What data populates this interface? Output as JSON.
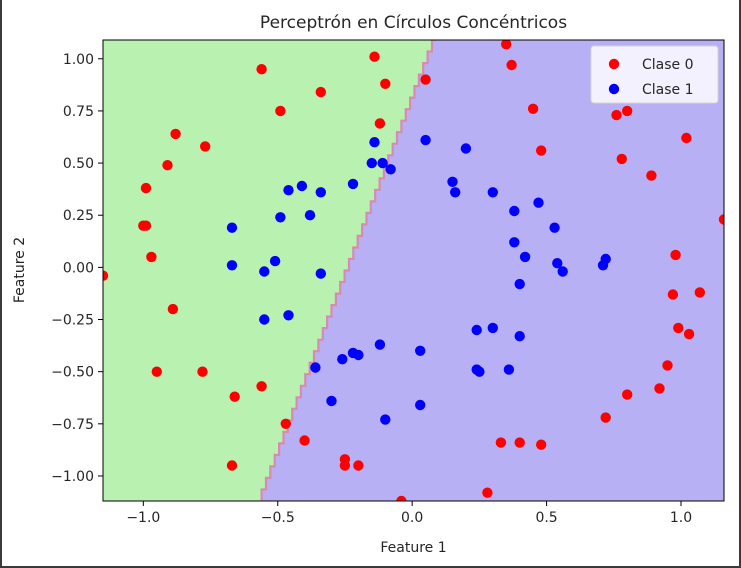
{
  "chart_data": {
    "type": "scatter",
    "title": "Perceptrón en Círculos Concéntricos",
    "xlabel": "Feature 1",
    "ylabel": "Feature 2",
    "xlim": [
      -1.15,
      1.16
    ],
    "ylim": [
      -1.12,
      1.09
    ],
    "xticks": [
      -1.0,
      -0.5,
      0.0,
      0.5,
      1.0
    ],
    "xtick_labels": [
      "−1.0",
      "−0.5",
      "0.0",
      "0.5",
      "1.0"
    ],
    "yticks": [
      1.0,
      0.75,
      0.5,
      0.25,
      0.0,
      -0.25,
      -0.5,
      -0.75,
      -1.0
    ],
    "ytick_labels": [
      "1.00",
      "0.75",
      "0.50",
      "0.25",
      "0.00",
      "−0.25",
      "−0.50",
      "−0.75",
      "−1.00"
    ],
    "grid": false,
    "legend_position": "top-right",
    "decision_regions": {
      "left_class": "Clase 0",
      "left_color": "#b9f1b0",
      "right_class": "Clase 1",
      "right_color": "#b8b0f4",
      "boundary_color": "#d98ab0",
      "boundary": [
        [
          -0.56,
          -1.12
        ],
        [
          0.09,
          1.09
        ]
      ]
    },
    "series": [
      {
        "name": "Clase 0",
        "color": "#ff0000",
        "points": [
          [
            -0.56,
            0.95
          ],
          [
            -0.14,
            1.01
          ],
          [
            -0.49,
            0.75
          ],
          [
            -0.34,
            0.84
          ],
          [
            -0.1,
            0.88
          ],
          [
            0.05,
            0.9
          ],
          [
            -0.12,
            0.69
          ],
          [
            -0.88,
            0.64
          ],
          [
            -0.77,
            0.58
          ],
          [
            -0.91,
            0.49
          ],
          [
            -0.99,
            0.38
          ],
          [
            -1.0,
            0.2
          ],
          [
            -0.99,
            0.2
          ],
          [
            -0.97,
            0.05
          ],
          [
            -1.15,
            -0.04
          ],
          [
            -0.89,
            -0.2
          ],
          [
            -0.95,
            -0.5
          ],
          [
            -0.78,
            -0.5
          ],
          [
            -0.66,
            -0.62
          ],
          [
            -0.56,
            -0.57
          ],
          [
            -0.47,
            -0.75
          ],
          [
            -0.4,
            -0.83
          ],
          [
            -0.67,
            -0.95
          ],
          [
            -0.25,
            -0.92
          ],
          [
            -0.25,
            -0.95
          ],
          [
            -0.2,
            -0.95
          ],
          [
            -0.04,
            -1.12
          ],
          [
            0.28,
            -1.08
          ],
          [
            0.35,
            1.07
          ],
          [
            0.37,
            0.97
          ],
          [
            0.45,
            0.76
          ],
          [
            0.48,
            0.56
          ],
          [
            0.76,
            0.73
          ],
          [
            0.8,
            0.75
          ],
          [
            0.78,
            0.52
          ],
          [
            1.02,
            0.62
          ],
          [
            0.89,
            0.44
          ],
          [
            1.16,
            0.23
          ],
          [
            0.98,
            0.06
          ],
          [
            0.97,
            -0.13
          ],
          [
            1.07,
            -0.12
          ],
          [
            0.99,
            -0.29
          ],
          [
            1.03,
            -0.32
          ],
          [
            0.95,
            -0.47
          ],
          [
            0.92,
            -0.58
          ],
          [
            0.8,
            -0.61
          ],
          [
            0.72,
            -0.72
          ],
          [
            0.33,
            -0.84
          ],
          [
            0.4,
            -0.84
          ],
          [
            0.48,
            -0.85
          ]
        ]
      },
      {
        "name": "Clase 1",
        "color": "#0000ff",
        "points": [
          [
            -0.14,
            0.6
          ],
          [
            -0.15,
            0.5
          ],
          [
            -0.11,
            0.5
          ],
          [
            -0.08,
            0.47
          ],
          [
            0.05,
            0.61
          ],
          [
            -0.22,
            0.4
          ],
          [
            -0.34,
            0.36
          ],
          [
            -0.41,
            0.39
          ],
          [
            -0.46,
            0.37
          ],
          [
            -0.49,
            0.24
          ],
          [
            -0.38,
            0.25
          ],
          [
            -0.67,
            0.19
          ],
          [
            -0.67,
            0.01
          ],
          [
            -0.55,
            -0.02
          ],
          [
            -0.51,
            0.03
          ],
          [
            -0.34,
            -0.03
          ],
          [
            -0.55,
            -0.25
          ],
          [
            -0.46,
            -0.23
          ],
          [
            -0.36,
            -0.48
          ],
          [
            -0.22,
            -0.41
          ],
          [
            -0.2,
            -0.42
          ],
          [
            -0.26,
            -0.44
          ],
          [
            -0.12,
            -0.37
          ],
          [
            0.03,
            -0.4
          ],
          [
            -0.3,
            -0.64
          ],
          [
            -0.1,
            -0.73
          ],
          [
            0.03,
            -0.66
          ],
          [
            0.15,
            0.41
          ],
          [
            0.16,
            0.36
          ],
          [
            0.2,
            0.57
          ],
          [
            0.3,
            0.36
          ],
          [
            0.38,
            0.27
          ],
          [
            0.47,
            0.31
          ],
          [
            0.53,
            0.19
          ],
          [
            0.38,
            0.12
          ],
          [
            0.42,
            0.05
          ],
          [
            0.54,
            0.02
          ],
          [
            0.56,
            -0.02
          ],
          [
            0.71,
            0.01
          ],
          [
            0.72,
            0.04
          ],
          [
            0.4,
            -0.08
          ],
          [
            0.24,
            -0.3
          ],
          [
            0.3,
            -0.29
          ],
          [
            0.4,
            -0.33
          ],
          [
            0.24,
            -0.49
          ],
          [
            0.25,
            -0.5
          ],
          [
            0.36,
            -0.49
          ]
        ]
      }
    ]
  }
}
